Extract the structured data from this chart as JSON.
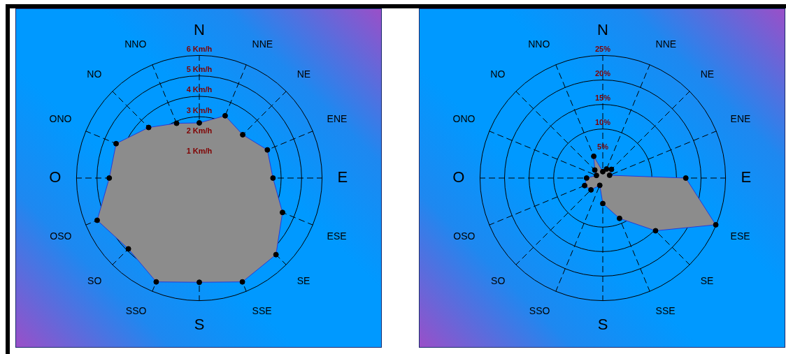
{
  "chart_data": [
    {
      "type": "radar",
      "categories": [
        "N",
        "NNE",
        "NE",
        "ENE",
        "E",
        "ESE",
        "SE",
        "SSE",
        "S",
        "SSO",
        "SO",
        "OSO",
        "O",
        "ONO",
        "NO",
        "NNO"
      ],
      "series": [
        {
          "color": "#8c8c8c",
          "values": [
            2.7,
            3.3,
            3.0,
            3.6,
            3.6,
            4.4,
            5.3,
            5.5,
            5.1,
            5.5,
            4.9,
            5.4,
            4.4,
            4.4,
            3.5,
            2.9
          ]
        }
      ],
      "ylim": [
        0,
        6
      ],
      "yticks": [
        {
          "value": 1,
          "label": "1 Km/h"
        },
        {
          "value": 2,
          "label": "2 Km/h"
        },
        {
          "value": 3,
          "label": "3 Km/h"
        },
        {
          "value": 4,
          "label": "4 Km/h"
        },
        {
          "value": 5,
          "label": "5 Km/h"
        },
        {
          "value": 6,
          "label": "6 Km/h"
        }
      ],
      "grid": true,
      "legend": false,
      "marker": "circle"
    },
    {
      "type": "radar",
      "categories": [
        "N",
        "NNE",
        "NE",
        "ENE",
        "E",
        "ESE",
        "SE",
        "SSE",
        "S",
        "SSO",
        "SO",
        "OSO",
        "O",
        "ONO",
        "NO",
        "NNO"
      ],
      "series": [
        {
          "color": "#8c8c8c",
          "values": [
            1.3,
            2.0,
            2.5,
            1.5,
            16.9,
            24.9,
            15.2,
            8.9,
            5.2,
            1.6,
            3.4,
            4.0,
            3.3,
            1.4,
            2.3,
            4.8
          ]
        }
      ],
      "ylim": [
        0,
        25
      ],
      "yticks": [
        {
          "value": 5,
          "label": "5%"
        },
        {
          "value": 10,
          "label": "10%"
        },
        {
          "value": 15,
          "label": "15%"
        },
        {
          "value": 20,
          "label": "20%"
        },
        {
          "value": 25,
          "label": "25%"
        }
      ],
      "grid": true,
      "legend": false,
      "marker": "circle"
    }
  ]
}
